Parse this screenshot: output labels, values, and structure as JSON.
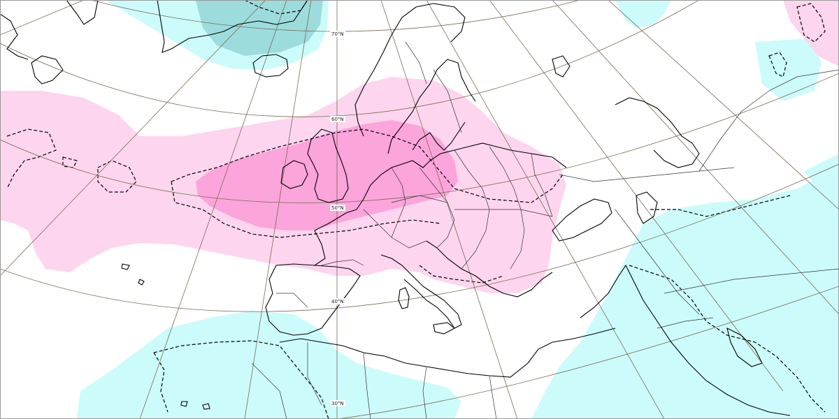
{
  "map": {
    "colors": {
      "background": "#ffffff",
      "anomaly_pos_weak": "#fdd5ee",
      "anomaly_pos_strong": "#fca4dc",
      "anomaly_neg_weak": "#ccfbfb",
      "anomaly_neg_strong": "#9cdcdc",
      "graticule": "#7a6a55",
      "coastline": "#000000",
      "border": "#333333"
    },
    "latitude_labels": [
      "70°N",
      "60°N",
      "50°N",
      "40°N",
      "30°N"
    ],
    "layers": [
      "positive-anomaly-shading",
      "negative-anomaly-shading",
      "dashed-contours",
      "graticule",
      "coastlines",
      "country-borders"
    ]
  }
}
